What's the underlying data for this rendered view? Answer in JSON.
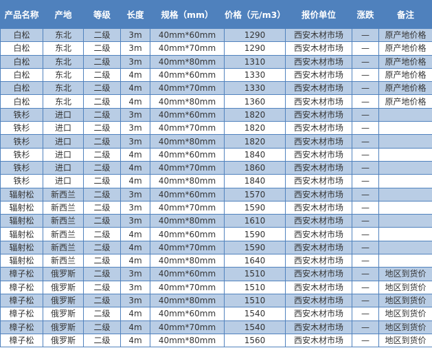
{
  "table": {
    "headers": [
      "产品名称",
      "产地",
      "等级",
      "长度",
      "规格（mm）",
      "价格（元/m3）",
      "报价单位",
      "涨跌",
      "备注"
    ],
    "header_colors": {
      "header_bg": "#4f81bd",
      "stripe": "#b9cde5",
      "border": "#4f81bd"
    },
    "rows": [
      [
        "白松",
        "东北",
        "二级",
        "3m",
        "40mm*60mm",
        "1290",
        "西安木材市场",
        "—",
        "原产地价格"
      ],
      [
        "白松",
        "东北",
        "二级",
        "3m",
        "40mm*70mm",
        "1290",
        "西安木材市场",
        "—",
        "原产地价格"
      ],
      [
        "白松",
        "东北",
        "二级",
        "3m",
        "40mm*80mm",
        "1310",
        "西安木材市场",
        "—",
        "原产地价格"
      ],
      [
        "白松",
        "东北",
        "二级",
        "4m",
        "40mm*60mm",
        "1330",
        "西安木材市场",
        "—",
        "原产地价格"
      ],
      [
        "白松",
        "东北",
        "二级",
        "4m",
        "40mm*70mm",
        "1330",
        "西安木材市场",
        "—",
        "原产地价格"
      ],
      [
        "白松",
        "东北",
        "二级",
        "4m",
        "40mm*80mm",
        "1360",
        "西安木材市场",
        "—",
        "原产地价格"
      ],
      [
        "铁杉",
        "进口",
        "二级",
        "3m",
        "40mm*60mm",
        "1820",
        "西安木材市场",
        "—",
        ""
      ],
      [
        "铁杉",
        "进口",
        "二级",
        "3m",
        "40mm*70mm",
        "1820",
        "西安木材市场",
        "—",
        ""
      ],
      [
        "铁杉",
        "进口",
        "二级",
        "3m",
        "40mm*80mm",
        "1820",
        "西安木材市场",
        "—",
        ""
      ],
      [
        "铁杉",
        "进口",
        "二级",
        "4m",
        "40mm*60mm",
        "1840",
        "西安木材市场",
        "—",
        ""
      ],
      [
        "铁杉",
        "进口",
        "二级",
        "4m",
        "40mm*70mm",
        "1860",
        "西安木材市场",
        "—",
        ""
      ],
      [
        "铁杉",
        "进口",
        "二级",
        "4m",
        "40mm*80mm",
        "1840",
        "西安木材市场",
        "—",
        ""
      ],
      [
        "辐射松",
        "新西兰",
        "二级",
        "3m",
        "40mm*60mm",
        "1570",
        "西安木材市场",
        "—",
        ""
      ],
      [
        "辐射松",
        "新西兰",
        "二级",
        "3m",
        "40mm*70mm",
        "1590",
        "西安木材市场",
        "—",
        ""
      ],
      [
        "辐射松",
        "新西兰",
        "二级",
        "3m",
        "40mm*80mm",
        "1610",
        "西安木材市场",
        "—",
        ""
      ],
      [
        "辐射松",
        "新西兰",
        "二级",
        "4m",
        "40mm*60mm",
        "1590",
        "西安木材市场",
        "—",
        ""
      ],
      [
        "辐射松",
        "新西兰",
        "二级",
        "4m",
        "40mm*70mm",
        "1590",
        "西安木材市场",
        "—",
        ""
      ],
      [
        "辐射松",
        "新西兰",
        "二级",
        "4m",
        "40mm*80mm",
        "1640",
        "西安木材市场",
        "—",
        ""
      ],
      [
        "樟子松",
        "俄罗斯",
        "二级",
        "3m",
        "40mm*60mm",
        "1510",
        "西安木材市场",
        "—",
        "地区到货价"
      ],
      [
        "樟子松",
        "俄罗斯",
        "二级",
        "3m",
        "40mm*70mm",
        "1510",
        "西安木材市场",
        "—",
        "地区到货价"
      ],
      [
        "樟子松",
        "俄罗斯",
        "二级",
        "3m",
        "40mm*80mm",
        "1510",
        "西安木材市场",
        "—",
        "地区到货价"
      ],
      [
        "樟子松",
        "俄罗斯",
        "二级",
        "4m",
        "40mm*60mm",
        "1540",
        "西安木材市场",
        "—",
        "地区到货价"
      ],
      [
        "樟子松",
        "俄罗斯",
        "二级",
        "4m",
        "40mm*70mm",
        "1540",
        "西安木材市场",
        "—",
        "地区到货价"
      ],
      [
        "樟子松",
        "俄罗斯",
        "二级",
        "4m",
        "40mm*80mm",
        "1560",
        "西安木材市场",
        "—",
        "地区到货价"
      ]
    ]
  }
}
